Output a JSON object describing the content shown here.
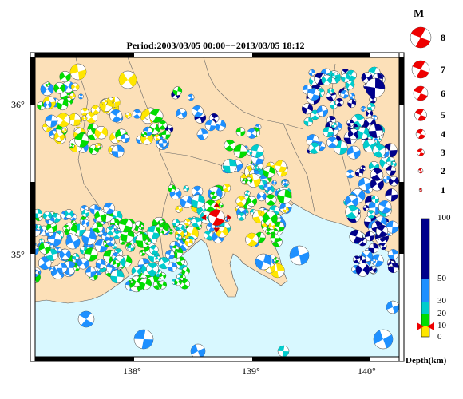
{
  "title": "Period:2003/03/05 00:00−−2013/03/05 18:12",
  "axis": {
    "x_ticks": [
      "138°",
      "139°",
      "140°"
    ],
    "y_ticks": [
      "36°",
      "35°"
    ]
  },
  "legend": {
    "magnitude_label": "M",
    "magnitudes": [
      "8",
      "7",
      "6",
      "5",
      "4",
      "3",
      "2",
      "1"
    ],
    "depth_title": "Depth(km)",
    "depth_ticks": [
      "100",
      "50",
      "30",
      "20",
      "10",
      "0"
    ],
    "depth_colors": {
      "shallow": "#ffe600",
      "mid": "#00dd00",
      "mid2": "#00cccc",
      "deep": "#1e90ff",
      "deepest": "#00008b"
    }
  },
  "colors": {
    "land": "#fce0b8",
    "sea": "#d8f8ff",
    "main_event": "#ee0000"
  },
  "chart_data": {
    "type": "map",
    "xlim": [
      137.2,
      140.25
    ],
    "ylim": [
      34.45,
      36.3
    ],
    "main_event": {
      "lon": 138.72,
      "lat": 35.31,
      "magnitude_class": "large",
      "depth_km": 10
    }
  }
}
